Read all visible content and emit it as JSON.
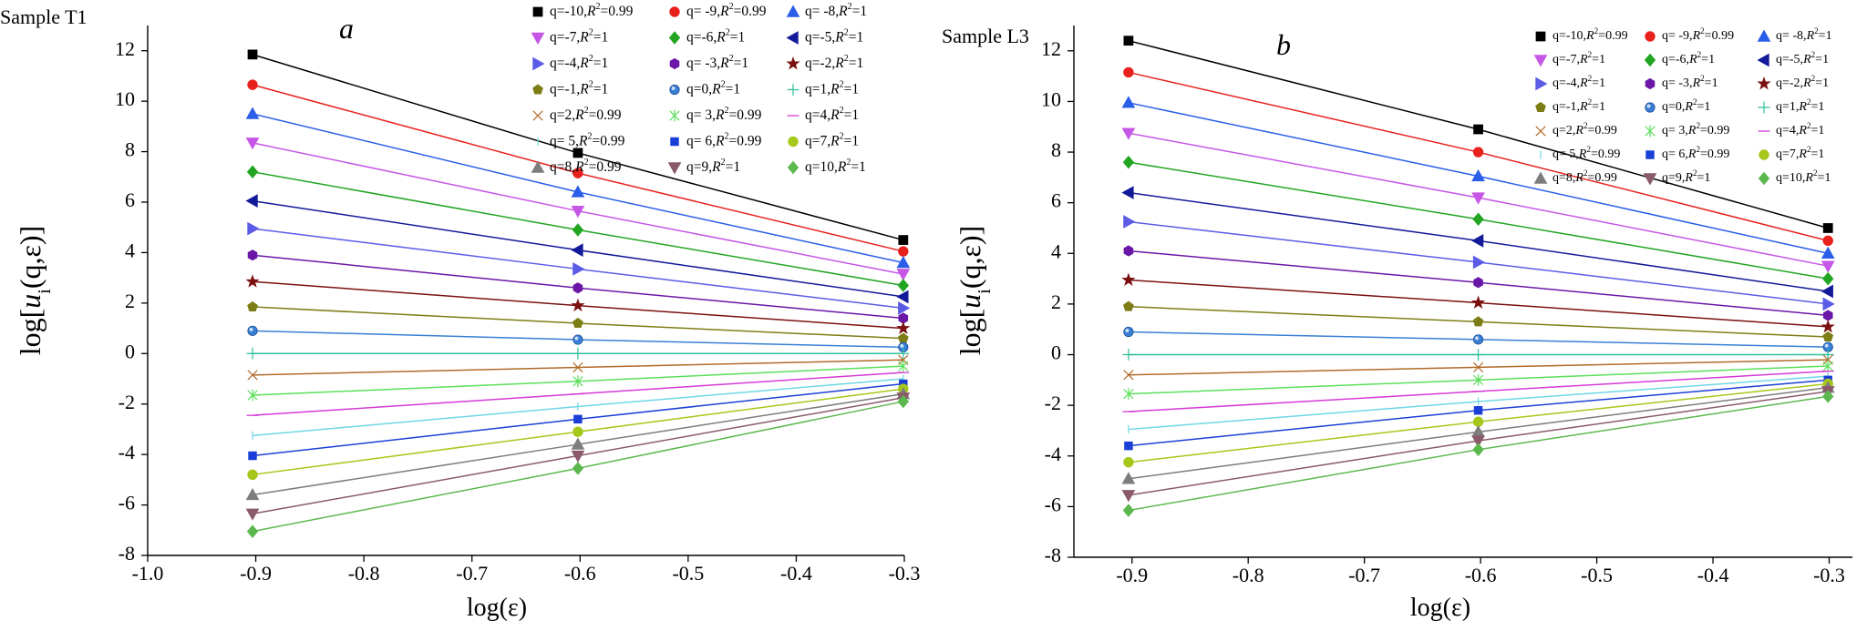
{
  "chart_data": [
    {
      "type": "line",
      "sample": "Sample T1",
      "panel_letter": "a",
      "xlabel": "log(ε)",
      "ylabel_main": "log[",
      "ylabel_italic": "u",
      "ylabel_sub": "i",
      "ylabel_tail": "(q,ε)]",
      "xlim": [
        -1.0,
        -0.3
      ],
      "ylim": [
        -8,
        13
      ],
      "xticks": [
        -1.0,
        -0.9,
        -0.8,
        -0.7,
        -0.6,
        -0.5,
        -0.4,
        -0.3
      ],
      "xtick_labels": [
        "-1.0",
        "-0.9",
        "-0.8",
        "-0.7",
        "-0.6",
        "-0.5",
        "-0.4",
        "-0.3"
      ],
      "yticks": [
        -8,
        -6,
        -4,
        -2,
        0,
        2,
        4,
        6,
        8,
        10,
        12
      ],
      "ytick_labels": [
        "-8",
        "-6",
        "-4",
        "-2",
        "0",
        "2",
        "4",
        "6",
        "8",
        "10",
        "12"
      ],
      "x": [
        -0.903,
        -0.602,
        -0.301
      ],
      "series": [
        {
          "name": "q=-10,R²=0.99",
          "q": -10,
          "r2": "0.99",
          "values": [
            11.85,
            7.95,
            4.5
          ],
          "color": "#000000",
          "marker": "square"
        },
        {
          "name": "q= -9,R²=0.99",
          "q": -9,
          "r2": "0.99",
          "values": [
            10.65,
            7.15,
            4.05
          ],
          "color": "#e8211d",
          "marker": "circle"
        },
        {
          "name": "q= -8,R²=1",
          "q": -8,
          "r2": "1",
          "values": [
            9.5,
            6.4,
            3.6
          ],
          "color": "#2a5ee8",
          "marker": "triangle-up"
        },
        {
          "name": "q=-7,R²=1",
          "q": -7,
          "r2": "1",
          "values": [
            8.35,
            5.65,
            3.15
          ],
          "color": "#c657e6",
          "marker": "triangle-down"
        },
        {
          "name": "q=-6,R²=1",
          "q": -6,
          "r2": "1",
          "values": [
            7.2,
            4.9,
            2.7
          ],
          "color": "#22a522",
          "marker": "diamond"
        },
        {
          "name": "q=-5,R²=1",
          "q": -5,
          "r2": "1",
          "values": [
            6.05,
            4.1,
            2.25
          ],
          "color": "#121a9a",
          "marker": "triangle-left"
        },
        {
          "name": "q=-4,R²=1",
          "q": -4,
          "r2": "1",
          "values": [
            4.95,
            3.35,
            1.8
          ],
          "color": "#5b5be6",
          "marker": "triangle-right"
        },
        {
          "name": "q= -3,R²=1",
          "q": -3,
          "r2": "1",
          "values": [
            3.9,
            2.6,
            1.4
          ],
          "color": "#6a17a8",
          "marker": "hexagon"
        },
        {
          "name": "q=-2,R²=1",
          "q": -2,
          "r2": "1",
          "values": [
            2.85,
            1.9,
            1.0
          ],
          "color": "#7a1010",
          "marker": "star"
        },
        {
          "name": "q=-1,R²=1",
          "q": -1,
          "r2": "1",
          "values": [
            1.85,
            1.2,
            0.6
          ],
          "color": "#7d7d16",
          "marker": "pentagon"
        },
        {
          "name": "q=0,R²=1",
          "q": 0,
          "r2": "1",
          "values": [
            0.9,
            0.55,
            0.25
          ],
          "color": "#3a7fd6",
          "marker": "sphere"
        },
        {
          "name": "q=1,R²=1",
          "q": 1,
          "r2": "1",
          "values": [
            0.0,
            0.0,
            0.0
          ],
          "color": "#2fbf9a",
          "marker": "plus"
        },
        {
          "name": "q=2,R²=0.99",
          "q": 2,
          "r2": "0.99",
          "values": [
            -0.85,
            -0.55,
            -0.25
          ],
          "color": "#b06a2a",
          "marker": "cross"
        },
        {
          "name": "q= 3,R²=0.99",
          "q": 3,
          "r2": "0.99",
          "values": [
            -1.65,
            -1.1,
            -0.5
          ],
          "color": "#5be05b",
          "marker": "asterisk"
        },
        {
          "name": "q=4,R²=1",
          "q": 4,
          "r2": "1",
          "values": [
            -2.45,
            -1.6,
            -0.75
          ],
          "color": "#d63ad6",
          "marker": "dash"
        },
        {
          "name": "q= 5,R²=0.99",
          "q": 5,
          "r2": "0.99",
          "values": [
            -3.25,
            -2.1,
            -1.0
          ],
          "color": "#6fd6e6",
          "marker": "vline"
        },
        {
          "name": "q= 6,R²=0.99",
          "q": 6,
          "r2": "0.99",
          "values": [
            -4.05,
            -2.6,
            -1.2
          ],
          "color": "#1a3fd6",
          "marker": "small-square"
        },
        {
          "name": "q=7,R²=1",
          "q": 7,
          "r2": "1",
          "values": [
            -4.8,
            -3.1,
            -1.4
          ],
          "color": "#a6c81a",
          "marker": "circle"
        },
        {
          "name": "q=8,R²=0.99",
          "q": 8,
          "r2": "0.99",
          "values": [
            -5.6,
            -3.6,
            -1.6
          ],
          "color": "#7d7d7d",
          "marker": "triangle-up"
        },
        {
          "name": "q=9,R²=1",
          "q": 9,
          "r2": "1",
          "values": [
            -6.35,
            -4.05,
            -1.75
          ],
          "color": "#8a5a6a",
          "marker": "triangle-down"
        },
        {
          "name": "q=10,R²=1",
          "q": 10,
          "r2": "1",
          "values": [
            -7.05,
            -4.55,
            -1.9
          ],
          "color": "#5cb84e",
          "marker": "diamond"
        }
      ]
    },
    {
      "type": "line",
      "sample": "Sample L3",
      "panel_letter": "b",
      "xlabel": "log(ε)",
      "ylabel_main": "log[",
      "ylabel_italic": "u",
      "ylabel_sub": "i",
      "ylabel_tail": "(q,ε)]",
      "xlim": [
        -0.95,
        -0.28
      ],
      "ylim": [
        -8,
        13
      ],
      "xticks": [
        -0.9,
        -0.8,
        -0.7,
        -0.6,
        -0.5,
        -0.4,
        -0.3
      ],
      "xtick_labels": [
        "-0.9",
        "-0.8",
        "-0.7",
        "-0.6",
        "-0.5",
        "-0.4",
        "-0.3"
      ],
      "yticks": [
        -8,
        -6,
        -4,
        -2,
        0,
        2,
        4,
        6,
        8,
        10,
        12
      ],
      "ytick_labels": [
        "-8",
        "-6",
        "-4",
        "-2",
        "0",
        "2",
        "4",
        "6",
        "8",
        "10",
        "12"
      ],
      "x": [
        -0.903,
        -0.602,
        -0.301
      ],
      "series": [
        {
          "name": "q=-10,R²=0.99",
          "q": -10,
          "r2": "0.99",
          "values": [
            12.4,
            8.9,
            5.0
          ],
          "color": "#000000",
          "marker": "square"
        },
        {
          "name": "q= -9,R²=0.99",
          "q": -9,
          "r2": "0.99",
          "values": [
            11.15,
            8.0,
            4.5
          ],
          "color": "#e8211d",
          "marker": "circle"
        },
        {
          "name": "q= -8,R²=1",
          "q": -8,
          "r2": "1",
          "values": [
            9.95,
            7.05,
            4.0
          ],
          "color": "#2a5ee8",
          "marker": "triangle-up"
        },
        {
          "name": "q=-7,R²=1",
          "q": -7,
          "r2": "1",
          "values": [
            8.75,
            6.2,
            3.5
          ],
          "color": "#c657e6",
          "marker": "triangle-down"
        },
        {
          "name": "q=-6,R²=1",
          "q": -6,
          "r2": "1",
          "values": [
            7.6,
            5.35,
            3.0
          ],
          "color": "#22a522",
          "marker": "diamond"
        },
        {
          "name": "q=-5,R²=1",
          "q": -5,
          "r2": "1",
          "values": [
            6.4,
            4.5,
            2.5
          ],
          "color": "#121a9a",
          "marker": "triangle-left"
        },
        {
          "name": "q=-4,R²=1",
          "q": -4,
          "r2": "1",
          "values": [
            5.25,
            3.65,
            2.0
          ],
          "color": "#5b5be6",
          "marker": "triangle-right"
        },
        {
          "name": "q= -3,R²=1",
          "q": -3,
          "r2": "1",
          "values": [
            4.1,
            2.85,
            1.55
          ],
          "color": "#6a17a8",
          "marker": "hexagon"
        },
        {
          "name": "q=-2,R²=1",
          "q": -2,
          "r2": "1",
          "values": [
            2.95,
            2.05,
            1.1
          ],
          "color": "#7a1010",
          "marker": "star"
        },
        {
          "name": "q=-1,R²=1",
          "q": -1,
          "r2": "1",
          "values": [
            1.9,
            1.3,
            0.7
          ],
          "color": "#7d7d16",
          "marker": "pentagon"
        },
        {
          "name": "q=0,R²=1",
          "q": 0,
          "r2": "1",
          "values": [
            0.9,
            0.6,
            0.3
          ],
          "color": "#3a7fd6",
          "marker": "sphere"
        },
        {
          "name": "q=1,R²=1",
          "q": 1,
          "r2": "1",
          "values": [
            0.0,
            0.0,
            0.0
          ],
          "color": "#2fbf9a",
          "marker": "plus"
        },
        {
          "name": "q=2,R²=0.99",
          "q": 2,
          "r2": "0.99",
          "values": [
            -0.8,
            -0.5,
            -0.2
          ],
          "color": "#b06a2a",
          "marker": "cross"
        },
        {
          "name": "q= 3,R²=0.99",
          "q": 3,
          "r2": "0.99",
          "values": [
            -1.55,
            -1.0,
            -0.45
          ],
          "color": "#5be05b",
          "marker": "asterisk"
        },
        {
          "name": "q=4,R²=1",
          "q": 4,
          "r2": "1",
          "values": [
            -2.25,
            -1.45,
            -0.65
          ],
          "color": "#d63ad6",
          "marker": "dash"
        },
        {
          "name": "q= 5,R²=0.99",
          "q": 5,
          "r2": "0.99",
          "values": [
            -2.95,
            -1.85,
            -0.85
          ],
          "color": "#6fd6e6",
          "marker": "vline"
        },
        {
          "name": "q= 6,R²=0.99",
          "q": 6,
          "r2": "0.99",
          "values": [
            -3.6,
            -2.2,
            -1.0
          ],
          "color": "#1a3fd6",
          "marker": "small-square"
        },
        {
          "name": "q=7,R²=1",
          "q": 7,
          "r2": "1",
          "values": [
            -4.25,
            -2.65,
            -1.15
          ],
          "color": "#a6c81a",
          "marker": "circle"
        },
        {
          "name": "q=8,R²=0.99",
          "q": 8,
          "r2": "0.99",
          "values": [
            -4.9,
            -3.05,
            -1.3
          ],
          "color": "#7d7d7d",
          "marker": "triangle-up"
        },
        {
          "name": "q=9,R²=1",
          "q": 9,
          "r2": "1",
          "values": [
            -5.55,
            -3.4,
            -1.45
          ],
          "color": "#8a5a6a",
          "marker": "triangle-down"
        },
        {
          "name": "q=10,R²=1",
          "q": 10,
          "r2": "1",
          "values": [
            -6.15,
            -3.75,
            -1.65
          ],
          "color": "#5cb84e",
          "marker": "diamond"
        }
      ]
    }
  ]
}
